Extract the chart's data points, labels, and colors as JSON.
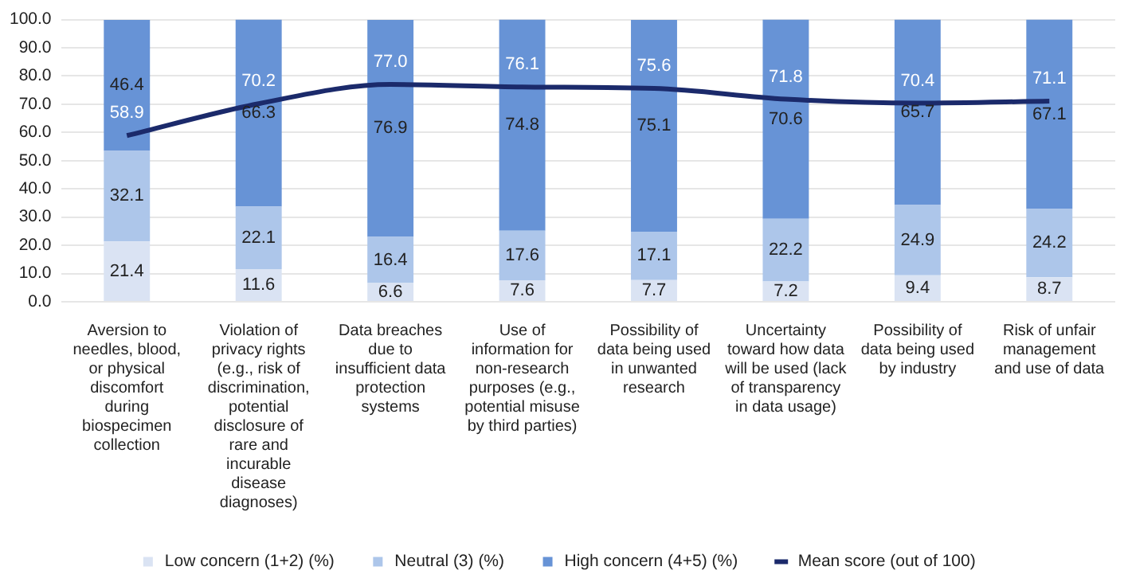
{
  "chart_data": {
    "type": "bar",
    "stacked": true,
    "categories": [
      "Aversion to needles, blood, or physical discomfort during biospecimen collection",
      "Violation of privacy rights (e.g., risk of discrimination, potential disclosure of rare and incurable disease diagnoses)",
      "Data breaches due to insufficient data protection systems",
      "Use of information for non-research purposes (e.g., potential misuse by third parties)",
      "Possibility of data being used in unwanted research",
      "Uncertainty toward how data will be used (lack of transparency in data usage)",
      "Possibility of data being used by industry",
      "Risk of unfair management and use of data"
    ],
    "series": [
      {
        "name": "Low concern (1+2) (%)",
        "color": "#dae3f3",
        "values": [
          21.4,
          11.6,
          6.6,
          7.6,
          7.7,
          7.2,
          9.4,
          8.7
        ],
        "value_labels": [
          "21.4",
          "11.6",
          "6.6",
          "7.6",
          "7.7",
          "7.2",
          "9.4",
          "8.7"
        ]
      },
      {
        "name": "Neutral (3) (%)",
        "color": "#adc6ea",
        "values": [
          32.1,
          22.1,
          16.4,
          17.6,
          17.1,
          22.2,
          24.9,
          24.2
        ],
        "value_labels": [
          "32.1",
          "22.1",
          "16.4",
          "17.6",
          "17.1",
          "22.2",
          "24.9",
          "24.2"
        ]
      },
      {
        "name": "High concern (4+5) (%)",
        "color": "#6793d6",
        "values": [
          46.4,
          66.3,
          76.9,
          74.8,
          75.1,
          70.6,
          65.7,
          67.1
        ],
        "value_labels": [
          "46.4",
          "66.3",
          "76.9",
          "74.8",
          "75.1",
          "70.6",
          "65.7",
          "67.1"
        ]
      },
      {
        "name": "Mean score (out of 100)",
        "type": "line",
        "color": "#1b2a6b",
        "values": [
          58.9,
          70.2,
          77.0,
          76.1,
          75.6,
          71.8,
          70.4,
          71.1
        ],
        "value_labels": [
          "58.9",
          "70.2",
          "77.0",
          "76.1",
          "75.6",
          "71.8",
          "70.4",
          "71.1"
        ]
      }
    ],
    "ylim": [
      0,
      100
    ],
    "yticks": [
      {
        "value": 0,
        "label": "0.0"
      },
      {
        "value": 10,
        "label": "10.0"
      },
      {
        "value": 20,
        "label": "20.0"
      },
      {
        "value": 30,
        "label": "30.0"
      },
      {
        "value": 40,
        "label": "40.0"
      },
      {
        "value": 50,
        "label": "50.0"
      },
      {
        "value": 60,
        "label": "60.0"
      },
      {
        "value": 70,
        "label": "70.0"
      },
      {
        "value": 80,
        "label": "80.0"
      },
      {
        "value": 90,
        "label": "90.0"
      },
      {
        "value": 100,
        "label": "100.0"
      }
    ],
    "grid": "y",
    "legend": "bottom",
    "marker": "none"
  }
}
